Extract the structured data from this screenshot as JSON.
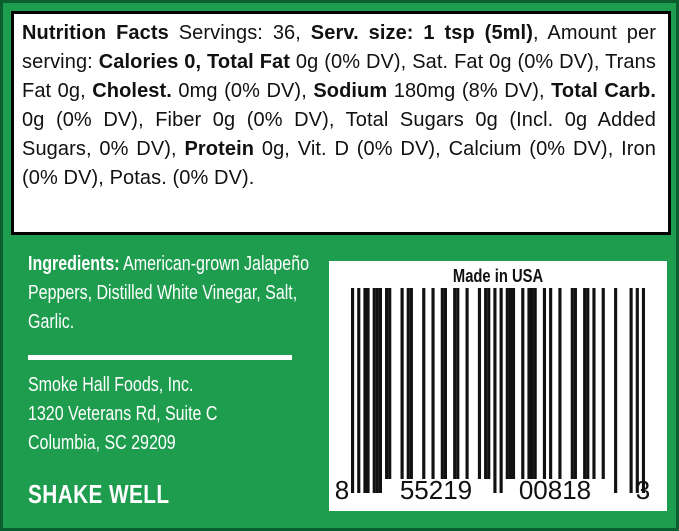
{
  "colors": {
    "background_green": "#1f9d4f",
    "edge_green": "#0b5f2d",
    "panel_white": "#ffffff",
    "text_black": "#111111",
    "text_white": "#ffffff"
  },
  "nutrition_panel": {
    "segments": [
      {
        "text": "Nutrition Facts",
        "bold": true
      },
      {
        "text": " Servings: 36, ",
        "bold": false
      },
      {
        "text": "Serv. size: 1 tsp (5ml)",
        "bold": true
      },
      {
        "text": ", Amount per serving: ",
        "bold": false
      },
      {
        "text": "Calories 0, Total Fat",
        "bold": true
      },
      {
        "text": " 0g (0% DV), Sat. Fat 0g (0% DV), Trans Fat 0g, ",
        "bold": false
      },
      {
        "text": "Cholest.",
        "bold": true
      },
      {
        "text": " 0mg (0% DV), ",
        "bold": false
      },
      {
        "text": "Sodium",
        "bold": true
      },
      {
        "text": " 180mg (8% DV), ",
        "bold": false
      },
      {
        "text": "Total Carb.",
        "bold": true
      },
      {
        "text": " 0g (0% DV), Fiber 0g (0% DV), Total Sugars 0g (Incl. 0g Added Sugars, 0% DV), ",
        "bold": false
      },
      {
        "text": "Protein",
        "bold": true
      },
      {
        "text": " 0g, Vit. D (0% DV), Calcium (0% DV), Iron (0% DV), Potas. (0% DV).",
        "bold": false
      }
    ]
  },
  "ingredients": {
    "label": "Ingredients:",
    "text": " American-grown Jalapeño Peppers, Distilled White Vinegar, Salt, Garlic."
  },
  "company": {
    "lines": [
      "Smoke Hall Foods, Inc.",
      "1320 Veterans Rd, Suite C",
      "Columbia, SC 29209"
    ]
  },
  "shake_well": "SHAKE WELL",
  "barcode": {
    "made_in": "Made in USA",
    "value": "855219008183",
    "display_groups": [
      "8",
      "55219",
      "00818",
      "3"
    ]
  }
}
